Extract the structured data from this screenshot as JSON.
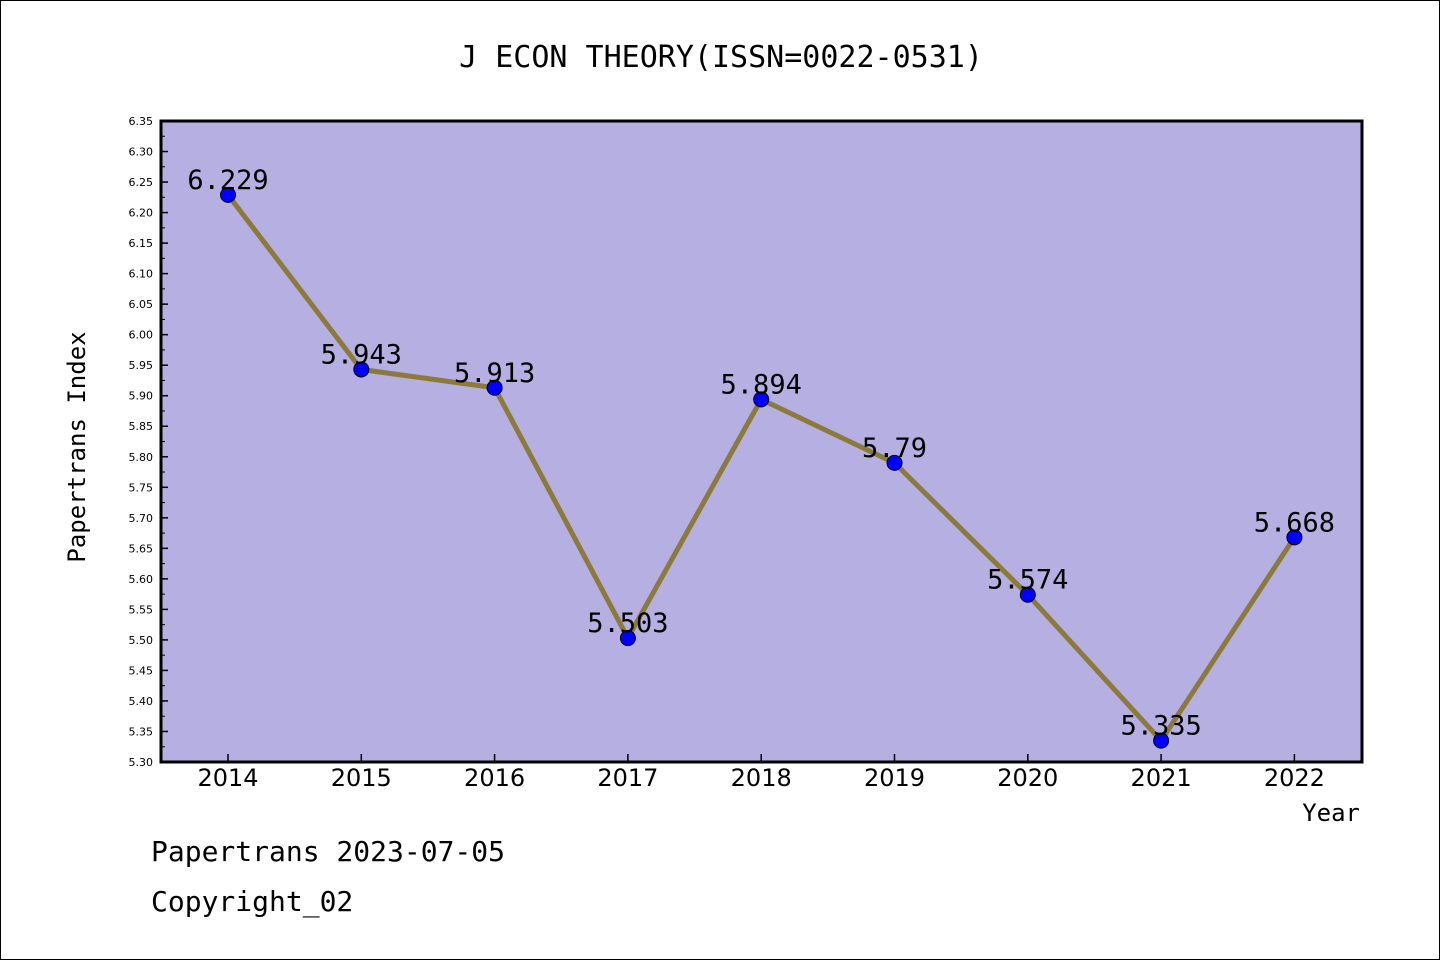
{
  "chart_data": {
    "type": "line",
    "title": "J ECON THEORY(ISSN=0022-0531)",
    "xlabel": "Year",
    "ylabel": "Papertrans Index",
    "categories": [
      "2014",
      "2015",
      "2016",
      "2017",
      "2018",
      "2019",
      "2020",
      "2021",
      "2022"
    ],
    "series": [
      {
        "values": [
          6.229,
          5.943,
          5.913,
          5.503,
          5.894,
          5.79,
          5.574,
          5.335,
          5.668
        ],
        "labels": [
          "6.229",
          "5.943",
          "5.913",
          "5.503",
          "5.894",
          "5.79",
          "5.574",
          "5.335",
          "5.668"
        ]
      }
    ],
    "ylim": [
      5.3,
      6.35
    ],
    "yticks": [
      "5.30",
      "5.35",
      "5.40",
      "5.45",
      "5.50",
      "5.55",
      "5.60",
      "5.65",
      "5.70",
      "5.75",
      "5.80",
      "5.85",
      "5.90",
      "5.95",
      "6.00",
      "6.05",
      "6.10",
      "6.15",
      "6.20",
      "6.25",
      "6.30",
      "6.35"
    ],
    "grid": false,
    "colors": {
      "plot_background": "#b5afe2",
      "line": "#8b7a3a",
      "marker": "#0000ff"
    }
  },
  "footer": {
    "line1": "Papertrans 2023-07-05",
    "line2": "Copyright_02"
  }
}
